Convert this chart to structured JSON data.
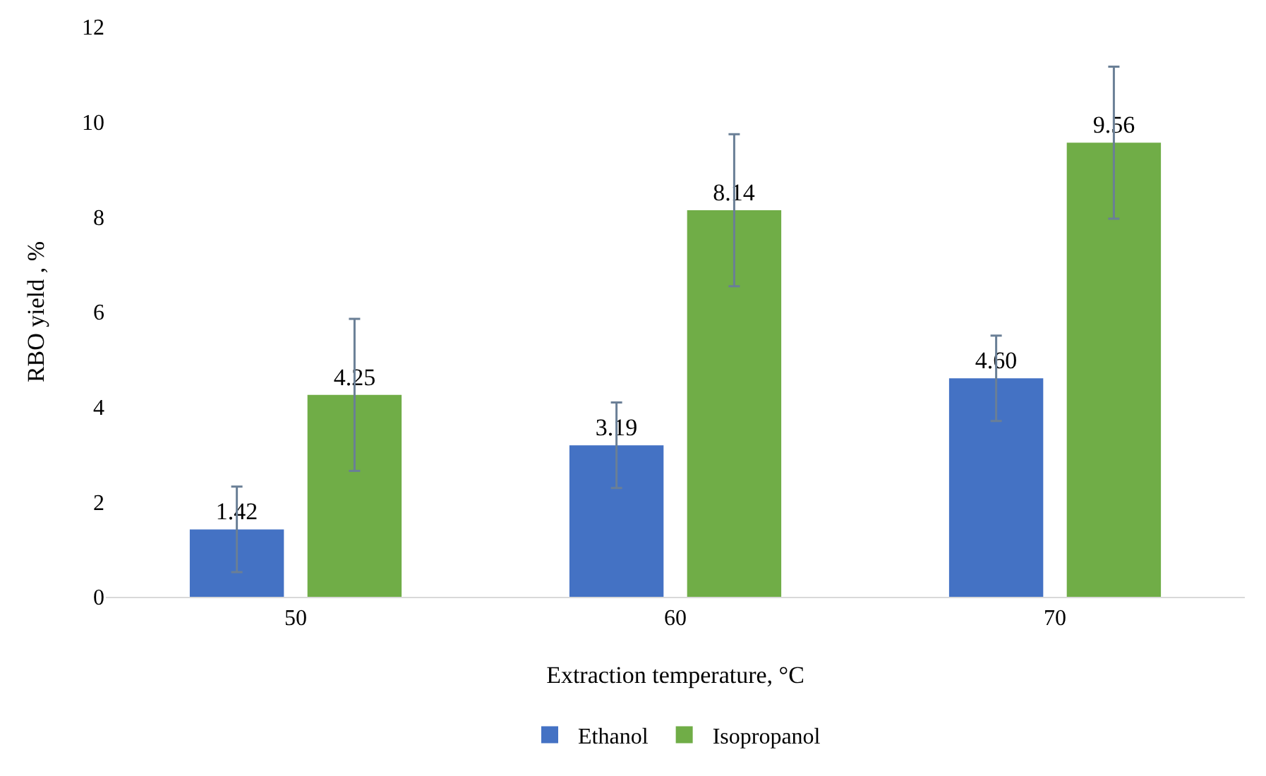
{
  "chart_data": {
    "type": "bar",
    "xlabel": "Extraction temperature, °C",
    "ylabel": "RBO yield , %",
    "categories": [
      "50",
      "60",
      "70"
    ],
    "series": [
      {
        "name": "Ethanol",
        "color": "#4472c4",
        "values": [
          1.42,
          3.19,
          4.6
        ],
        "errors": [
          0.9,
          0.9,
          0.9
        ],
        "value_labels": [
          "1.42",
          "3.19",
          "4.60"
        ]
      },
      {
        "name": "Isopropanol",
        "color": "#70ad47",
        "values": [
          4.25,
          8.14,
          9.56
        ],
        "errors": [
          1.6,
          1.6,
          1.6
        ],
        "value_labels": [
          "4.25",
          "8.14",
          "9.56"
        ]
      }
    ],
    "ylim": [
      0,
      12
    ],
    "yticks": [
      0,
      2,
      4,
      6,
      8,
      10,
      12
    ],
    "grid": false,
    "legend": "bottom"
  }
}
